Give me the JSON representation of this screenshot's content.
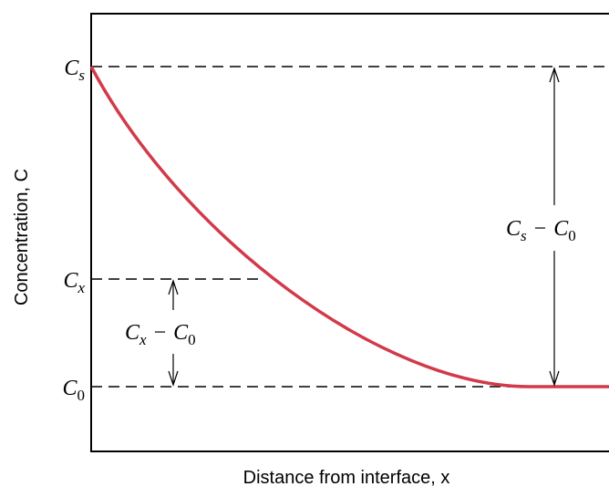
{
  "y_labels": [
    {
      "symbol": "C",
      "subscript": "s"
    },
    {
      "symbol": "C",
      "subscript": "x"
    },
    {
      "symbol": "C",
      "subscript": "0"
    }
  ],
  "annotations": [
    {
      "left": {
        "symbol": "C",
        "subscript": "s"
      },
      "operator": "−",
      "right": {
        "symbol": "C",
        "subscript": "0"
      }
    },
    {
      "left": {
        "symbol": "C",
        "subscript": "x"
      },
      "operator": "−",
      "right": {
        "symbol": "C",
        "subscript": "0"
      }
    }
  ],
  "axis_labels": {
    "y": "Concentration, C",
    "x": "Distance from interface, x"
  }
}
